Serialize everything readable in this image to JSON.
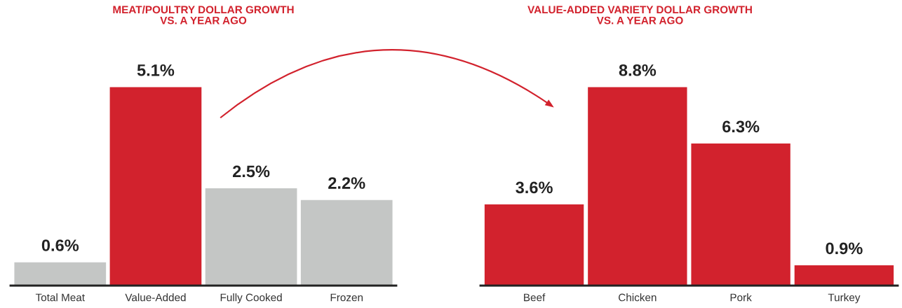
{
  "chart_data": [
    {
      "type": "bar",
      "title": "MEAT/POULTRY DOLLAR GROWTH\nVS. A YEAR AGO",
      "categories": [
        "Total Meat",
        "Value-Added",
        "Fully Cooked",
        "Frozen"
      ],
      "values": [
        0.6,
        5.1,
        2.5,
        2.2
      ],
      "colors": [
        "#c4c6c5",
        "#d2222d",
        "#c4c6c5",
        "#c4c6c5"
      ],
      "value_labels": [
        "0.6%",
        "5.1%",
        "2.5%",
        "2.2%"
      ]
    },
    {
      "type": "bar",
      "title": "VALUE-ADDED VARIETY DOLLAR GROWTH\nVS. A YEAR AGO",
      "categories": [
        "Beef",
        "Chicken",
        "Pork",
        "Turkey"
      ],
      "values": [
        3.6,
        8.8,
        6.3,
        0.9
      ],
      "colors": [
        "#d2222d",
        "#d2222d",
        "#d2222d",
        "#d2222d"
      ],
      "value_labels": [
        "3.6%",
        "8.8%",
        "6.3%",
        "0.9%"
      ]
    }
  ]
}
